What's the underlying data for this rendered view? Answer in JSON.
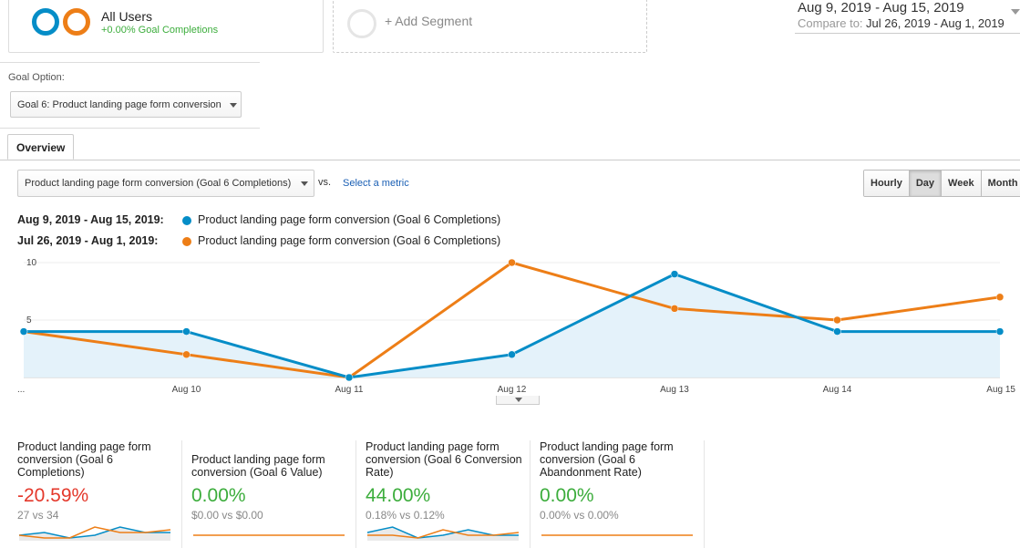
{
  "segments": {
    "primary": {
      "name": "All Users",
      "subtitle": "+0.00% Goal Completions"
    },
    "add_label": "+ Add Segment"
  },
  "date_range": {
    "main": "Aug 9, 2019 - Aug 15, 2019",
    "compare_label": "Compare to:",
    "compare_value": "Jul 26, 2019 - Aug 1, 2019"
  },
  "goal_option": {
    "label": "Goal Option:",
    "value": "Goal 6: Product landing page form conversion"
  },
  "tabs": [
    {
      "label": "Overview"
    }
  ],
  "metric_bar": {
    "metric": "Product landing page form conversion (Goal 6 Completions)",
    "vs": "vs.",
    "select_metric": "Select a metric",
    "granularity": [
      {
        "label": "Hourly",
        "active": false
      },
      {
        "label": "Day",
        "active": true
      },
      {
        "label": "Week",
        "active": false
      },
      {
        "label": "Month",
        "active": false
      }
    ]
  },
  "legend": [
    {
      "date": "Aug 9, 2019 - Aug 15, 2019:",
      "series": "Product landing page form conversion (Goal 6 Completions)",
      "color": "#058dc7"
    },
    {
      "date": "Jul 26, 2019 - Aug 1, 2019:",
      "series": "Product landing page form conversion (Goal 6 Completions)",
      "color": "#ed7e17"
    }
  ],
  "chart_data": {
    "type": "line",
    "x": [
      "...",
      "Aug 10",
      "Aug 11",
      "Aug 12",
      "Aug 13",
      "Aug 14",
      "Aug 15"
    ],
    "yticks": [
      "5",
      "10"
    ],
    "ylim": [
      0,
      10
    ],
    "grid": true,
    "series": [
      {
        "name": "Aug 9, 2019 - Aug 15, 2019",
        "color": "#058dc7",
        "values": [
          4,
          4,
          0,
          2,
          9,
          4,
          4
        ],
        "area": true
      },
      {
        "name": "Jul 26, 2019 - Aug 1, 2019",
        "color": "#ed7e17",
        "values": [
          4,
          2,
          0,
          10,
          6,
          5,
          7
        ],
        "area": false
      }
    ]
  },
  "scorecards": [
    {
      "title": "Product landing page form conversion (Goal 6 Completions)",
      "value": "-20.59%",
      "value_color": "#e4382b",
      "sub": "27 vs 34",
      "spark": {
        "blue": [
          1,
          2,
          0,
          1,
          4,
          2,
          2
        ],
        "orange": [
          1,
          0,
          0,
          4,
          2,
          2,
          3
        ]
      }
    },
    {
      "title": "Product landing page form conversion (Goal 6 Value)",
      "value": "0.00%",
      "value_color": "#3cad3c",
      "sub": "$0.00 vs $0.00",
      "spark": {
        "blue": [
          0,
          0,
          0,
          0,
          0,
          0,
          0
        ],
        "orange": [
          0,
          0,
          0,
          0,
          0,
          0,
          0
        ]
      }
    },
    {
      "title": "Product landing page form conversion (Goal 6 Conversion Rate)",
      "value": "44.00%",
      "value_color": "#3cad3c",
      "sub": "0.18% vs 0.12%",
      "spark": {
        "blue": [
          2,
          4,
          0,
          1,
          3,
          1,
          1
        ],
        "orange": [
          1,
          1,
          0,
          3,
          1,
          1,
          2
        ]
      }
    },
    {
      "title": "Product landing page form conversion (Goal 6 Abandonment Rate)",
      "value": "0.00%",
      "value_color": "#3cad3c",
      "sub": "0.00% vs 0.00%",
      "spark": {
        "blue": [
          0,
          0,
          0,
          0,
          0,
          0,
          0
        ],
        "orange": [
          0,
          0,
          0,
          0,
          0,
          0,
          0
        ]
      }
    }
  ]
}
